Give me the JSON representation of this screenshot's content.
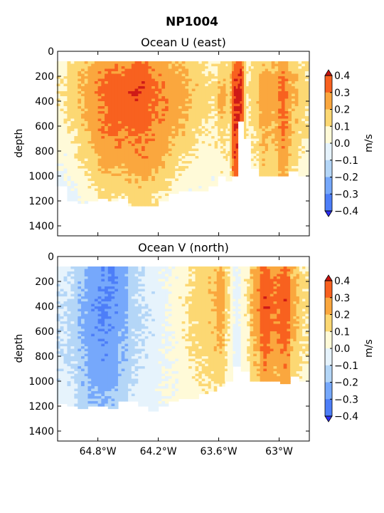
{
  "figure": {
    "suptitle": "NP1004"
  },
  "colors": {
    "levels": [
      -0.4,
      -0.3,
      -0.2,
      -0.1,
      0.0,
      0.1,
      0.2,
      0.3,
      0.4
    ],
    "bands": [
      "#3a3cfc",
      "#4d7ef8",
      "#76a8fb",
      "#b4d6f7",
      "#e6f3fc",
      "#fffad8",
      "#fcd873",
      "#faa73e",
      "#f8611f",
      "#cf1b17"
    ],
    "extend_low": "#2b2cf0",
    "extend_high": "#c81410"
  },
  "chart_data": [
    {
      "type": "heatmap",
      "subtype": "filled-contour",
      "title": "Ocean U (east)",
      "xlabel": "",
      "ylabel": "depth",
      "yticks": [
        0,
        200,
        400,
        600,
        800,
        1000,
        1200,
        1400
      ],
      "ylim": [
        1480,
        0
      ],
      "xlim": [
        -65.2,
        -62.7
      ],
      "xticks": [
        -64.8,
        -64.2,
        -63.6,
        -63.0
      ],
      "xtick_labels": [],
      "colorbar": {
        "label": "m/s",
        "ticks": [
          "0.4",
          "0.3",
          "0.2",
          "0.1",
          "0.0",
          "−0.1",
          "−0.2",
          "−0.3",
          "−0.4"
        ]
      },
      "profiles": [
        {
          "lon": -65.16,
          "maxd": 1080,
          "values": [
            0.05,
            0.08,
            0.1,
            0.09,
            0.07,
            0.05,
            0.02,
            0.0,
            -0.03,
            -0.05
          ]
        },
        {
          "lon": -65.05,
          "maxd": 1200,
          "values": [
            0.12,
            0.15,
            0.16,
            0.14,
            0.12,
            0.1,
            0.08,
            0.05,
            0.01,
            -0.04
          ]
        },
        {
          "lon": -64.95,
          "maxd": 1220,
          "values": [
            0.15,
            0.2,
            0.22,
            0.2,
            0.18,
            0.16,
            0.13,
            0.1,
            0.06,
            0.02
          ]
        },
        {
          "lon": -64.85,
          "maxd": 1200,
          "values": [
            0.22,
            0.26,
            0.28,
            0.26,
            0.24,
            0.22,
            0.19,
            0.15,
            0.11,
            0.06
          ]
        },
        {
          "lon": -64.75,
          "maxd": 1180,
          "values": [
            0.26,
            0.3,
            0.33,
            0.32,
            0.3,
            0.28,
            0.25,
            0.21,
            0.16,
            0.1
          ]
        },
        {
          "lon": -64.65,
          "maxd": 1200,
          "values": [
            0.28,
            0.33,
            0.37,
            0.36,
            0.33,
            0.3,
            0.27,
            0.23,
            0.18,
            0.12
          ]
        },
        {
          "lon": -64.55,
          "maxd": 1180,
          "values": [
            0.26,
            0.31,
            0.35,
            0.34,
            0.32,
            0.29,
            0.26,
            0.22,
            0.17,
            0.11
          ]
        },
        {
          "lon": -64.45,
          "maxd": 1230,
          "values": [
            0.3,
            0.36,
            0.39,
            0.37,
            0.34,
            0.31,
            0.28,
            0.25,
            0.2,
            0.13
          ]
        },
        {
          "lon": -64.35,
          "maxd": 1230,
          "values": [
            0.31,
            0.37,
            0.38,
            0.35,
            0.33,
            0.31,
            0.29,
            0.26,
            0.21,
            0.14
          ]
        },
        {
          "lon": -64.25,
          "maxd": 1230,
          "values": [
            0.25,
            0.3,
            0.33,
            0.32,
            0.3,
            0.28,
            0.26,
            0.23,
            0.18,
            0.12
          ]
        },
        {
          "lon": -64.15,
          "maxd": 1200,
          "values": [
            0.22,
            0.27,
            0.3,
            0.29,
            0.27,
            0.25,
            0.22,
            0.18,
            0.13,
            0.08
          ]
        },
        {
          "lon": -64.05,
          "maxd": 1140,
          "values": [
            0.2,
            0.24,
            0.27,
            0.26,
            0.24,
            0.21,
            0.17,
            0.13,
            0.09,
            0.05
          ]
        },
        {
          "lon": -63.95,
          "maxd": 1120,
          "values": [
            0.18,
            0.22,
            0.24,
            0.22,
            0.2,
            0.17,
            0.13,
            0.09,
            0.06,
            0.03
          ]
        },
        {
          "lon": -63.85,
          "maxd": 1120,
          "values": [
            0.14,
            0.17,
            0.18,
            0.16,
            0.14,
            0.12,
            0.09,
            0.06,
            0.04,
            0.02
          ]
        },
        {
          "lon": -63.75,
          "maxd": 1120,
          "values": [
            0.1,
            0.13,
            0.14,
            0.13,
            0.11,
            0.09,
            0.07,
            0.05,
            0.03,
            0.01
          ]
        },
        {
          "lon": -63.66,
          "maxd": 1080,
          "values": [
            0.08,
            0.11,
            0.12,
            0.11,
            0.09,
            0.08,
            0.06,
            0.04,
            0.02,
            0.01
          ]
        },
        {
          "lon": -63.56,
          "maxd": 1000,
          "values": [
            0.12,
            0.16,
            0.25,
            0.24,
            0.15,
            0.12,
            0.1,
            0.08,
            0.06,
            0.04
          ]
        },
        {
          "lon": -63.5,
          "maxd": 1040,
          "values": [
            0.1,
            0.14,
            0.16,
            0.14,
            0.12,
            0.1,
            0.08,
            0.06,
            0.04,
            0.02
          ]
        },
        {
          "lon": -63.44,
          "maxd": 1000,
          "values": [
            0.3,
            0.38,
            0.42,
            0.42,
            0.41,
            0.4,
            0.38,
            0.36,
            0.3,
            0.22
          ]
        },
        {
          "lon": -63.38,
          "maxd": 560,
          "values": [
            0.35,
            0.4,
            0.42,
            0.42,
            0.41,
            0.4,
            0.38,
            0.36,
            0.3,
            0.22
          ]
        },
        {
          "lon": -63.32,
          "maxd": 700,
          "values": [
            0.05,
            0.08,
            0.1,
            0.1,
            0.09,
            0.08,
            0.06,
            0.04,
            0.02,
            0.01
          ]
        },
        {
          "lon": -63.24,
          "maxd": 940,
          "values": [
            0.12,
            0.15,
            0.16,
            0.15,
            0.13,
            0.11,
            0.09,
            0.07,
            0.05,
            0.03
          ]
        },
        {
          "lon": -63.16,
          "maxd": 1000,
          "values": [
            0.18,
            0.24,
            0.26,
            0.25,
            0.23,
            0.21,
            0.19,
            0.17,
            0.14,
            0.11
          ]
        },
        {
          "lon": -63.06,
          "maxd": 1000,
          "values": [
            0.17,
            0.22,
            0.24,
            0.23,
            0.21,
            0.19,
            0.17,
            0.15,
            0.12,
            0.09
          ]
        },
        {
          "lon": -62.96,
          "maxd": 1000,
          "values": [
            0.24,
            0.3,
            0.34,
            0.33,
            0.31,
            0.29,
            0.27,
            0.24,
            0.2,
            0.15
          ]
        },
        {
          "lon": -62.86,
          "maxd": 960,
          "values": [
            0.16,
            0.2,
            0.22,
            0.21,
            0.19,
            0.17,
            0.15,
            0.13,
            0.1,
            0.07
          ]
        },
        {
          "lon": -62.76,
          "maxd": 1000,
          "values": [
            0.1,
            0.13,
            0.14,
            0.13,
            0.12,
            0.1,
            0.08,
            0.06,
            0.04,
            0.02
          ]
        }
      ]
    },
    {
      "type": "heatmap",
      "subtype": "filled-contour",
      "title": "Ocean V (north)",
      "xlabel": "",
      "ylabel": "depth",
      "yticks": [
        0,
        200,
        400,
        600,
        800,
        1000,
        1200,
        1400
      ],
      "ylim": [
        1480,
        0
      ],
      "xlim": [
        -65.2,
        -62.7
      ],
      "xticks": [
        -64.8,
        -64.2,
        -63.6,
        -63.0
      ],
      "xtick_labels": [
        "64.8°W",
        "64.2°W",
        "63.6°W",
        "63°W"
      ],
      "colorbar": {
        "label": "m/s",
        "ticks": [
          "0.4",
          "0.3",
          "0.2",
          "0.1",
          "0.0",
          "−0.1",
          "−0.2",
          "−0.3",
          "−0.4"
        ]
      },
      "profiles": [
        {
          "lon": -65.16,
          "maxd": 1180,
          "values": [
            -0.06,
            -0.07,
            -0.08,
            -0.09,
            -0.1,
            -0.1,
            -0.09,
            -0.08,
            -0.06,
            -0.04
          ]
        },
        {
          "lon": -65.05,
          "maxd": 1200,
          "values": [
            -0.1,
            -0.11,
            -0.12,
            -0.13,
            -0.13,
            -0.12,
            -0.11,
            -0.1,
            -0.08,
            -0.06
          ]
        },
        {
          "lon": -64.95,
          "maxd": 1220,
          "values": [
            -0.18,
            -0.2,
            -0.21,
            -0.22,
            -0.22,
            -0.21,
            -0.2,
            -0.19,
            -0.17,
            -0.15
          ]
        },
        {
          "lon": -64.85,
          "maxd": 1200,
          "values": [
            -0.24,
            -0.26,
            -0.27,
            -0.28,
            -0.28,
            -0.27,
            -0.26,
            -0.24,
            -0.22,
            -0.19
          ]
        },
        {
          "lon": -64.75,
          "maxd": 1200,
          "values": [
            -0.28,
            -0.29,
            -0.3,
            -0.31,
            -0.3,
            -0.29,
            -0.28,
            -0.26,
            -0.24,
            -0.21
          ]
        },
        {
          "lon": -64.65,
          "maxd": 1220,
          "values": [
            -0.32,
            -0.31,
            -0.3,
            -0.29,
            -0.28,
            -0.27,
            -0.25,
            -0.23,
            -0.21,
            -0.18
          ]
        },
        {
          "lon": -64.55,
          "maxd": 1160,
          "values": [
            -0.26,
            -0.25,
            -0.24,
            -0.23,
            -0.22,
            -0.21,
            -0.2,
            -0.18,
            -0.16,
            -0.14
          ]
        },
        {
          "lon": -64.45,
          "maxd": 1160,
          "values": [
            -0.14,
            -0.14,
            -0.13,
            -0.13,
            -0.12,
            -0.12,
            -0.11,
            -0.1,
            -0.09,
            -0.07
          ]
        },
        {
          "lon": -64.35,
          "maxd": 1200,
          "values": [
            -0.08,
            -0.09,
            -0.09,
            -0.1,
            -0.1,
            -0.09,
            -0.08,
            -0.07,
            -0.06,
            -0.05
          ]
        },
        {
          "lon": -64.25,
          "maxd": 1230,
          "values": [
            -0.05,
            -0.06,
            -0.07,
            -0.07,
            -0.08,
            -0.07,
            -0.06,
            -0.05,
            -0.04,
            -0.03
          ]
        },
        {
          "lon": -64.15,
          "maxd": 1200,
          "values": [
            -0.02,
            -0.02,
            -0.03,
            -0.03,
            -0.03,
            -0.02,
            -0.02,
            -0.01,
            0.0,
            0.0
          ]
        },
        {
          "lon": -64.05,
          "maxd": 1160,
          "values": [
            0.02,
            0.02,
            0.03,
            0.03,
            0.03,
            0.02,
            0.02,
            0.01,
            0.01,
            0.0
          ]
        },
        {
          "lon": -63.95,
          "maxd": 1140,
          "values": [
            0.06,
            0.07,
            0.08,
            0.08,
            0.07,
            0.07,
            0.06,
            0.05,
            0.04,
            0.03
          ]
        },
        {
          "lon": -63.85,
          "maxd": 1130,
          "values": [
            0.1,
            0.12,
            0.13,
            0.13,
            0.12,
            0.12,
            0.11,
            0.09,
            0.07,
            0.05
          ]
        },
        {
          "lon": -63.75,
          "maxd": 1100,
          "values": [
            0.13,
            0.15,
            0.16,
            0.16,
            0.15,
            0.14,
            0.13,
            0.11,
            0.09,
            0.06
          ]
        },
        {
          "lon": -63.66,
          "maxd": 1080,
          "values": [
            0.16,
            0.18,
            0.19,
            0.19,
            0.18,
            0.17,
            0.15,
            0.13,
            0.1,
            0.07
          ]
        },
        {
          "lon": -63.58,
          "maxd": 1040,
          "values": [
            0.22,
            0.27,
            0.28,
            0.26,
            0.24,
            0.22,
            0.19,
            0.16,
            0.12,
            0.08
          ]
        },
        {
          "lon": -63.5,
          "maxd": 1000,
          "values": [
            0.08,
            0.1,
            0.11,
            0.1,
            0.09,
            0.08,
            0.07,
            0.05,
            0.03,
            0.02
          ]
        },
        {
          "lon": -63.42,
          "maxd": 880,
          "values": [
            -0.02,
            -0.03,
            -0.04,
            -0.04,
            -0.04,
            -0.05,
            -0.05,
            -0.04,
            -0.03,
            -0.02
          ]
        },
        {
          "lon": -63.34,
          "maxd": 920,
          "values": [
            0.05,
            0.07,
            0.08,
            0.08,
            0.07,
            0.06,
            0.05,
            0.04,
            0.03,
            0.02
          ]
        },
        {
          "lon": -63.24,
          "maxd": 1000,
          "values": [
            0.2,
            0.24,
            0.26,
            0.25,
            0.23,
            0.21,
            0.19,
            0.17,
            0.14,
            0.1
          ]
        },
        {
          "lon": -63.14,
          "maxd": 1000,
          "values": [
            0.31,
            0.36,
            0.39,
            0.38,
            0.36,
            0.33,
            0.3,
            0.27,
            0.23,
            0.18
          ]
        },
        {
          "lon": -63.04,
          "maxd": 1000,
          "values": [
            0.26,
            0.3,
            0.32,
            0.31,
            0.29,
            0.27,
            0.25,
            0.22,
            0.18,
            0.14
          ]
        },
        {
          "lon": -62.94,
          "maxd": 1020,
          "values": [
            0.3,
            0.35,
            0.38,
            0.37,
            0.35,
            0.33,
            0.3,
            0.27,
            0.23,
            0.18
          ]
        },
        {
          "lon": -62.84,
          "maxd": 960,
          "values": [
            0.17,
            0.21,
            0.23,
            0.22,
            0.2,
            0.18,
            0.16,
            0.14,
            0.11,
            0.08
          ]
        },
        {
          "lon": -62.76,
          "maxd": 1000,
          "values": [
            0.09,
            0.12,
            0.13,
            0.12,
            0.11,
            0.1,
            0.09,
            0.07,
            0.05,
            0.03
          ]
        }
      ]
    }
  ]
}
